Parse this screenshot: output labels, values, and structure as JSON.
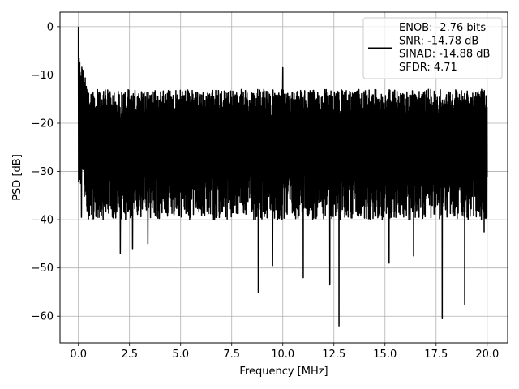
{
  "chart_data": {
    "type": "line",
    "title": "",
    "xlabel": "Frequency [MHz]",
    "ylabel": "PSD [dB]",
    "xlim": [
      -0.9,
      21.0
    ],
    "ylim": [
      -65.5,
      3.0
    ],
    "grid": true,
    "xticks": [
      0.0,
      2.5,
      5.0,
      7.5,
      10.0,
      12.5,
      15.0,
      17.5,
      20.0
    ],
    "xtick_labels": [
      "0.0",
      "2.5",
      "5.0",
      "7.5",
      "10.0",
      "12.5",
      "15.0",
      "17.5",
      "20.0"
    ],
    "yticks": [
      0,
      -10,
      -20,
      -30,
      -40,
      -50,
      -60
    ],
    "ytick_labels": [
      "0",
      "−10",
      "−20",
      "−30",
      "−40",
      "−50",
      "−60"
    ],
    "legend": {
      "placement": "upper right",
      "entries": [
        "ENOB: -2.76 bits",
        "SNR: -14.78 dB",
        "SINAD: -14.88 dB",
        "SFDR: 4.71"
      ]
    },
    "series": [
      {
        "color": "#000000",
        "x_range": [
          0.0,
          20.0
        ],
        "points": 2400,
        "noise_floor_db": -26,
        "noise_upper_db": -16,
        "noise_lower_db": -40,
        "start_spike": [
          0.0,
          0.0
        ],
        "spurs": [
          {
            "x": 10.0,
            "y": -8.5
          },
          {
            "x": 0.15,
            "y": -10.0
          }
        ],
        "dips": [
          {
            "x": 0.15,
            "y": -39.5
          },
          {
            "x": 2.05,
            "y": -47.0
          },
          {
            "x": 2.65,
            "y": -46.0
          },
          {
            "x": 3.4,
            "y": -45.0
          },
          {
            "x": 8.8,
            "y": -55.0
          },
          {
            "x": 9.5,
            "y": -49.5
          },
          {
            "x": 11.0,
            "y": -52.0
          },
          {
            "x": 12.3,
            "y": -53.5
          },
          {
            "x": 12.75,
            "y": -62.0
          },
          {
            "x": 15.2,
            "y": -49.0
          },
          {
            "x": 16.4,
            "y": -47.5
          },
          {
            "x": 17.8,
            "y": -60.5
          },
          {
            "x": 18.9,
            "y": -57.5
          },
          {
            "x": 19.85,
            "y": -42.5
          }
        ]
      }
    ]
  }
}
